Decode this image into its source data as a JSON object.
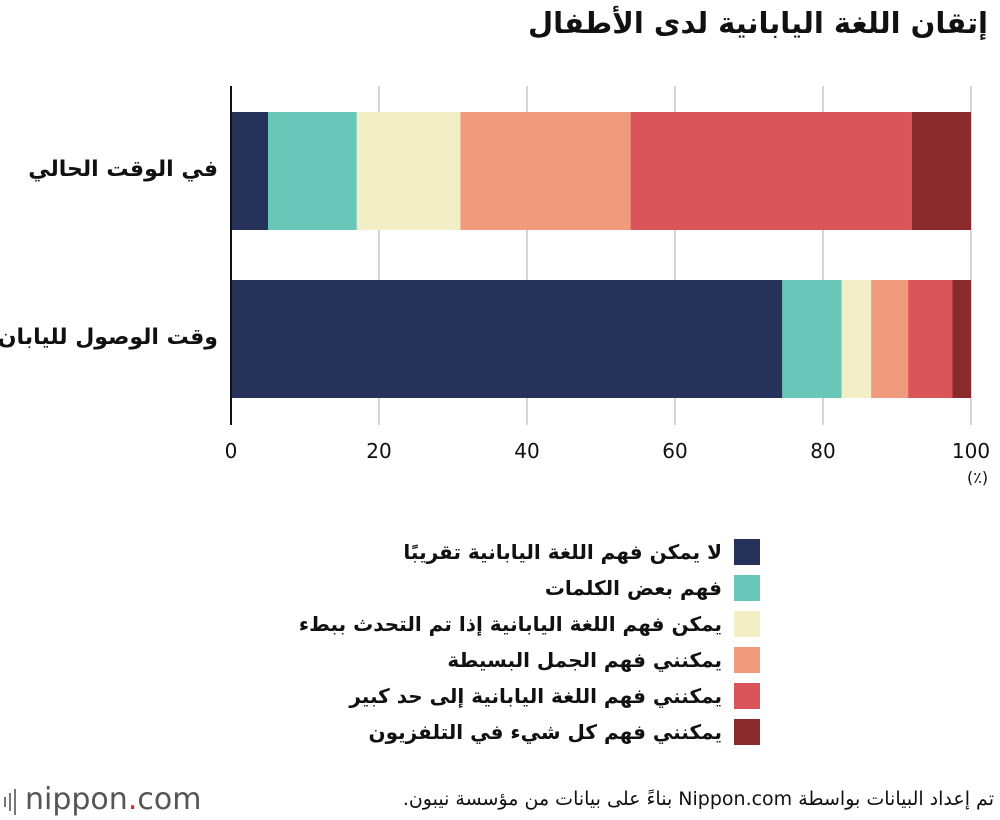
{
  "chart_data": {
    "type": "bar",
    "orientation": "horizontal",
    "stacked": true,
    "title": "إتقان اللغة اليابانية لدى الأطفال",
    "unit_label": "(٪)",
    "categories": [
      "في الوقت الحالي",
      "وقت الوصول لليابان"
    ],
    "xlim": [
      0,
      100
    ],
    "x_ticks": [
      0,
      20,
      40,
      60,
      80,
      100
    ],
    "grid": true,
    "legend_position": "bottom",
    "series": [
      {
        "name": "لا يمكن فهم اللغة اليابانية تقريبًا",
        "color": "#27325b",
        "values": [
          5,
          74.5
        ]
      },
      {
        "name": "فهم بعض الكلمات",
        "color": "#69c7ba",
        "values": [
          12,
          8
        ]
      },
      {
        "name": "يمكن فهم اللغة اليابانية إذا تم التحدث ببطء",
        "color": "#f2eec5",
        "values": [
          14,
          4
        ]
      },
      {
        "name": "يمكنني فهم الجمل البسيطة",
        "color": "#f09c7c",
        "values": [
          23,
          5
        ]
      },
      {
        "name": "يمكنني فهم اللغة اليابانية إلى حد كبير",
        "color": "#d95559",
        "values": [
          38,
          6
        ]
      },
      {
        "name": "يمكنني فهم كل شيء في التلفزيون",
        "color": "#8b2a2a",
        "values": [
          8,
          2.5
        ]
      }
    ]
  },
  "footer": {
    "logo_text": "nippon",
    "logo_dot": ".",
    "logo_suffix": "com",
    "source": "تم إعداد البيانات بواسطة Nippon.com بناءً على بيانات من مؤسسة نيبون."
  }
}
